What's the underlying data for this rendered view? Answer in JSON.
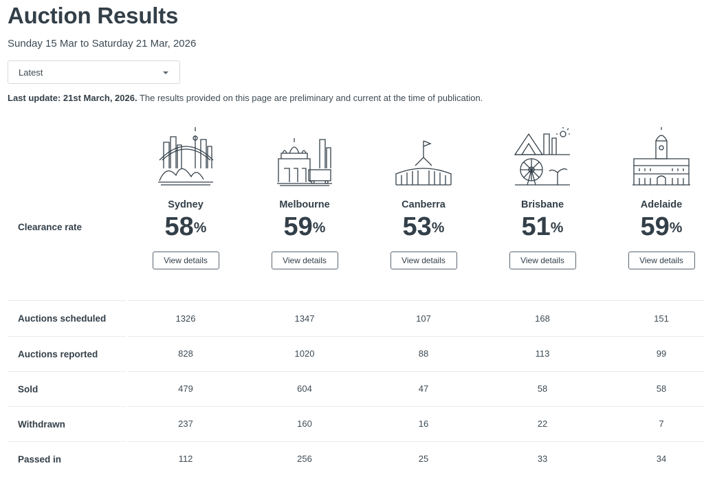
{
  "page": {
    "title": "Auction Results",
    "date_range": "Sunday 15 Mar to Saturday 21 Mar, 2026",
    "dropdown_value": "Latest",
    "last_update_bold": "Last update: 21st March, 2026.",
    "last_update_text": " The results provided on this page are preliminary and current at the time of publication."
  },
  "clearance_label": "Clearance rate",
  "view_details_label": "View details",
  "percent_sign": "%",
  "cities": [
    {
      "name": "Sydney",
      "icon": "sydney-skyline-icon",
      "rate": "58"
    },
    {
      "name": "Melbourne",
      "icon": "melbourne-skyline-icon",
      "rate": "59"
    },
    {
      "name": "Canberra",
      "icon": "canberra-parliament-icon",
      "rate": "53"
    },
    {
      "name": "Brisbane",
      "icon": "brisbane-skyline-icon",
      "rate": "51"
    },
    {
      "name": "Adelaide",
      "icon": "adelaide-townhall-icon",
      "rate": "59"
    }
  ],
  "table": {
    "rows": [
      {
        "label": "Auctions scheduled",
        "values": [
          "1326",
          "1347",
          "107",
          "168",
          "151"
        ]
      },
      {
        "label": "Auctions reported",
        "values": [
          "828",
          "1020",
          "88",
          "113",
          "99"
        ]
      },
      {
        "label": "Sold",
        "values": [
          "479",
          "604",
          "47",
          "58",
          "58"
        ]
      },
      {
        "label": "Withdrawn",
        "values": [
          "237",
          "160",
          "16",
          "22",
          "7"
        ]
      },
      {
        "label": "Passed in",
        "values": [
          "112",
          "256",
          "25",
          "33",
          "34"
        ]
      }
    ]
  },
  "colors": {
    "text": "#333f48",
    "border": "#5a6670",
    "divider": "#e8eaec"
  }
}
